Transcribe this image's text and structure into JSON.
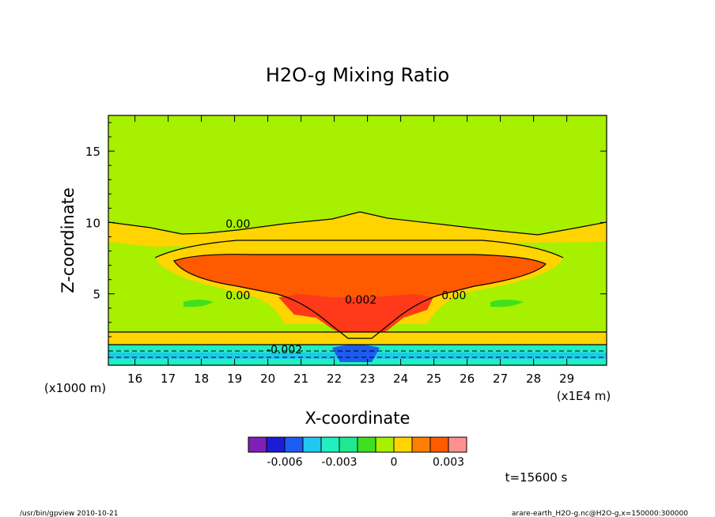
{
  "chart_data": {
    "type": "heatmap",
    "title": "H2O-g Mixing Ratio",
    "xlabel": "X-coordinate",
    "ylabel": "Z-coordinate",
    "x_unit_left": "(x1000 m)",
    "x_unit_right": "(x1E4 m)",
    "xlim": [
      15.2,
      30.2
    ],
    "ylim": [
      0,
      17.5
    ],
    "x_ticks": [
      "16",
      "17",
      "18",
      "19",
      "20",
      "21",
      "22",
      "23",
      "24",
      "25",
      "26",
      "27",
      "28",
      "29"
    ],
    "y_ticks": [
      "5",
      "10",
      "15"
    ],
    "contour_labels": [
      {
        "text": "0.00",
        "x": 19.1,
        "y": 9.9
      },
      {
        "text": "0.00",
        "x": 19.1,
        "y": 4.9
      },
      {
        "text": "0.002",
        "x": 22.8,
        "y": 4.6
      },
      {
        "text": "0.00",
        "x": 25.6,
        "y": 4.9
      },
      {
        "text": "-0.002",
        "x": 20.5,
        "y": 1.1
      }
    ],
    "colorbar": {
      "colors": [
        "#7f1fb6",
        "#1c1cd6",
        "#1c5cf0",
        "#20c8f0",
        "#20f0c0",
        "#20e890",
        "#40e020",
        "#a6f000",
        "#ffd400",
        "#ff8000",
        "#ff5a00",
        "#ff9090"
      ],
      "tick_labels": [
        "-0.006",
        "-0.003",
        "0",
        "0.003"
      ]
    },
    "time_label": "t=15600 s"
  },
  "footer": {
    "left": "/usr/bin/gpview   2010-10-21",
    "right": "arare-earth_H2O-g.nc@H2O-g,x=150000:300000"
  }
}
